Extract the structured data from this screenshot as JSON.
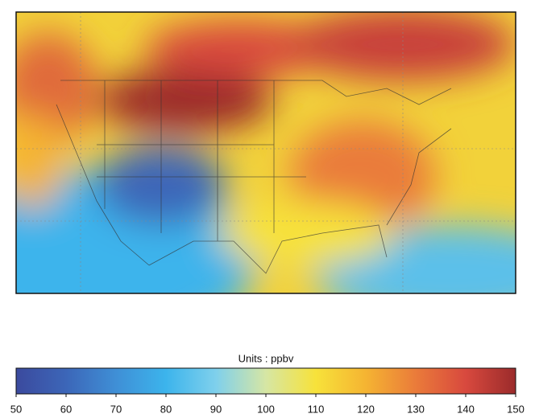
{
  "colorbar": {
    "label": "Units : ppbv",
    "range": [
      50,
      150
    ],
    "ticks": [
      50,
      60,
      70,
      80,
      90,
      100,
      110,
      120,
      130,
      140,
      150
    ],
    "colors": [
      "#3b4a9e",
      "#3c66b8",
      "#3f8fd6",
      "#3cb4ec",
      "#7fd0ec",
      "#d6e6a4",
      "#f7e23a",
      "#f5b432",
      "#ea7b3a",
      "#d8493e",
      "#9b2b2b"
    ]
  }
}
